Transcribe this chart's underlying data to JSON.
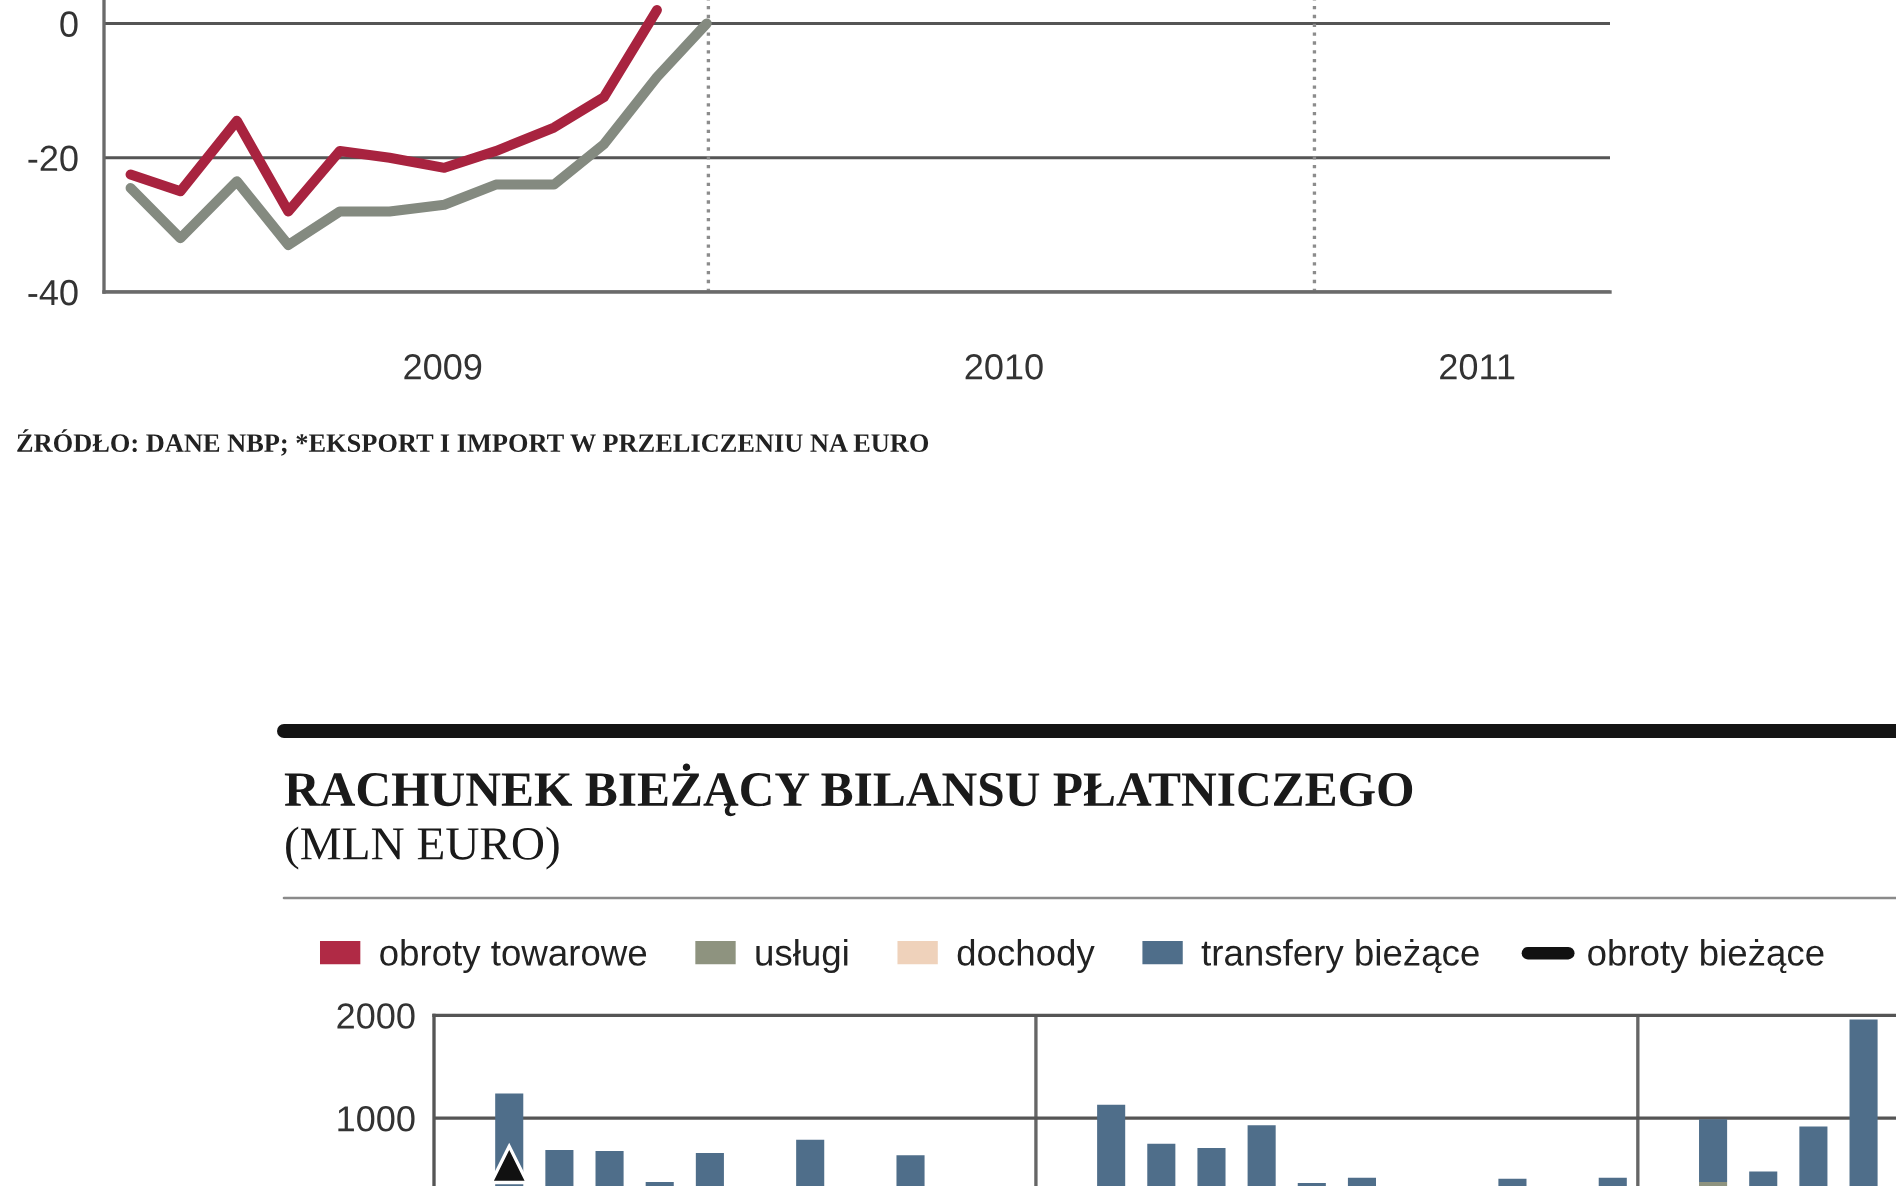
{
  "chart_data": [
    {
      "type": "line",
      "x": [
        "2009-01-18",
        "2009-02-17",
        "2009-03-23",
        "2009-04-23",
        "2009-05-24",
        "2009-06-23",
        "2009-07-26",
        "2009-08-26",
        "2009-09-30",
        "2009-10-30",
        "2009-12-01",
        "2009-12-31"
      ],
      "series": [
        {
          "color": "#a8233f",
          "values": [
            -22.5,
            -25,
            -14.5,
            -28,
            -19,
            -20,
            -21.5,
            -19,
            -15.5,
            -11,
            2,
            null
          ]
        },
        {
          "color": "#848a80",
          "values": [
            -24.5,
            -32,
            -23.5,
            -33,
            -28,
            -28,
            -27,
            -24,
            -24,
            -18,
            -8,
            0
          ]
        }
      ],
      "xlim": [
        "2009-01-02",
        "2011-06-28"
      ],
      "xticks": [
        {
          "value": "2009-07-25",
          "label": "2009"
        },
        {
          "value": "2010-06-28",
          "label": "2010"
        },
        {
          "value": "2011-04-09",
          "label": "2011"
        }
      ],
      "ylim": [
        -40,
        3.5
      ],
      "yticks": [
        -40,
        -20,
        0
      ],
      "grid": "y",
      "ref_lines": [
        {
          "axis": "x",
          "value": "2010-01-01",
          "line_style": "dotted",
          "color": "#8c8c8c"
        },
        {
          "axis": "x",
          "value": "2011-01-01",
          "line_style": "dotted",
          "color": "#8c8c8c"
        }
      ],
      "annotations": [
        "ŹRÓDŁO: DANE NBP; *EKSPORT I IMPORT W PRZELICZENIU NA EURO"
      ]
    },
    {
      "type": "bar",
      "title": "RACHUNEK BIEŻĄCY BILANSU PŁATNICZEGO",
      "subtitle": "(MLN EURO)",
      "categories": [
        null,
        null,
        null,
        null,
        null,
        null,
        null,
        null,
        null,
        null,
        null,
        null,
        null,
        null,
        null,
        null,
        null,
        null,
        null,
        null,
        null,
        null,
        null,
        null,
        null,
        null,
        null,
        null,
        null
      ],
      "stacked": true,
      "series": [
        {
          "name": "obroty towarowe",
          "color": "#b02a45",
          "values": [
            null,
            null,
            null,
            null,
            null,
            null,
            null,
            null,
            null,
            null,
            null,
            null,
            null,
            null,
            null,
            null,
            null,
            null,
            null,
            null,
            null,
            null,
            null,
            null,
            null,
            null,
            null,
            null,
            null
          ]
        },
        {
          "name": "usługi",
          "color": "#8e937f",
          "values": [
            null,
            null,
            null,
            null,
            null,
            null,
            null,
            null,
            null,
            null,
            null,
            null,
            null,
            null,
            null,
            null,
            null,
            null,
            null,
            null,
            null,
            null,
            null,
            null,
            null,
            380,
            null,
            null,
            null
          ]
        },
        {
          "name": "dochody",
          "color": "#efd2bb",
          "values": [
            null,
            null,
            null,
            null,
            null,
            null,
            null,
            null,
            null,
            null,
            null,
            null,
            null,
            null,
            null,
            null,
            null,
            null,
            null,
            null,
            null,
            null,
            null,
            null,
            null,
            null,
            null,
            null,
            null
          ]
        },
        {
          "name": "transfery bieżące",
          "color": "#4f6e8a",
          "values": [
            null,
            1240,
            690,
            680,
            380,
            660,
            null,
            790,
            null,
            640,
            null,
            null,
            null,
            1130,
            750,
            710,
            930,
            370,
            420,
            null,
            null,
            410,
            null,
            420,
            null,
            610,
            480,
            920,
            1960
          ]
        },
        {
          "name": "obroty bieżące",
          "type": "line",
          "color": "#111111",
          "values": [
            null,
            550,
            null,
            null,
            null,
            null,
            null,
            null,
            null,
            null,
            null,
            null,
            null,
            null,
            null,
            null,
            null,
            null,
            null,
            null,
            null,
            null,
            null,
            null,
            null,
            null,
            null,
            null,
            null
          ]
        }
      ],
      "ylim": [
        340,
        2000
      ],
      "yticks": [
        1000,
        2000
      ],
      "legend": "top",
      "tick_labels": "y",
      "marker": "triangle",
      "ref_lines": [
        {
          "axis": "y",
          "value": 1000,
          "color": "#555555"
        }
      ]
    }
  ]
}
